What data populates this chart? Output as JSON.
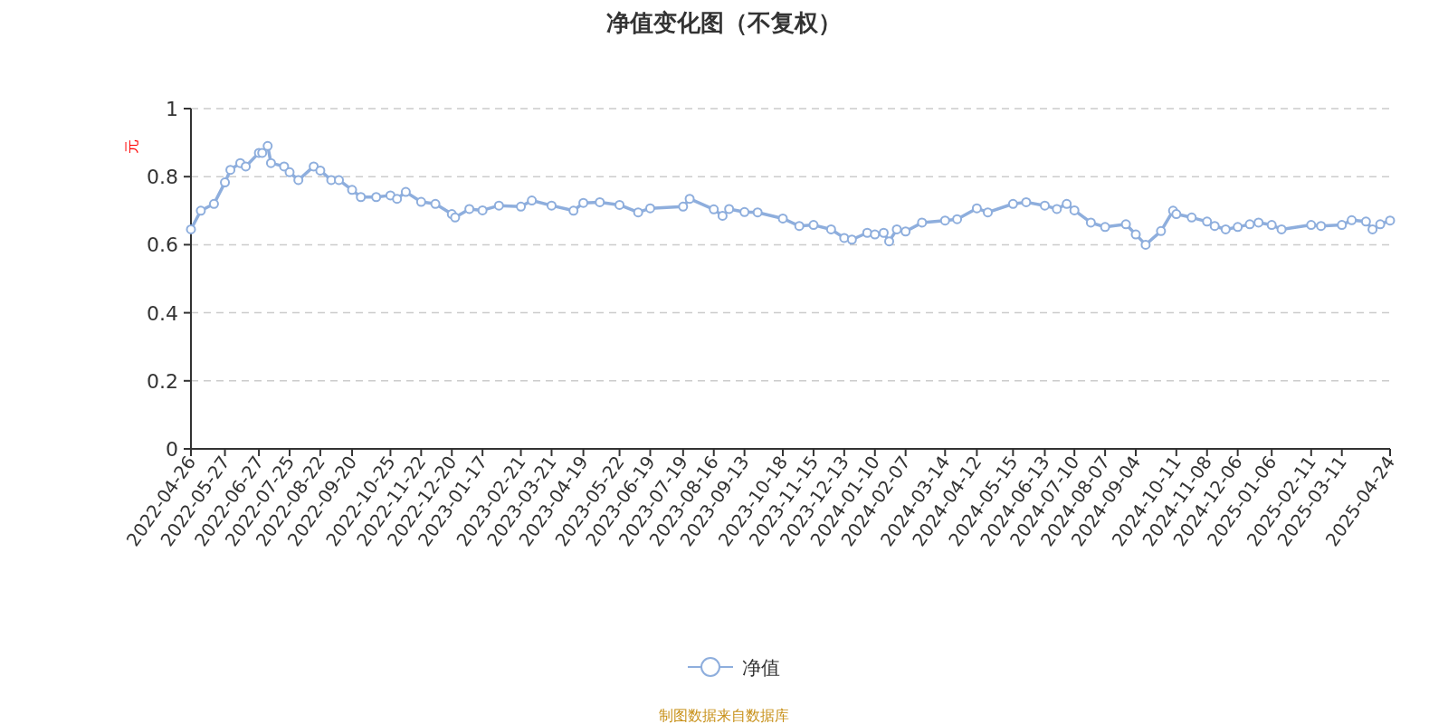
{
  "chart_data": {
    "type": "line",
    "title": "净值变化图（不复权）",
    "ylabel": "元",
    "annotations": [
      "制图数据来自数据库"
    ],
    "x": [
      "2022-04-26",
      "2022-05-05",
      "2022-05-17",
      "2022-05-27",
      "2022-06-01",
      "2022-06-10",
      "2022-06-15",
      "2022-06-27",
      "2022-06-30",
      "2022-07-05",
      "2022-07-08",
      "2022-07-20",
      "2022-07-25",
      "2022-08-02",
      "2022-08-16",
      "2022-08-22",
      "2022-09-01",
      "2022-09-08",
      "2022-09-20",
      "2022-09-28",
      "2022-10-12",
      "2022-10-25",
      "2022-10-31",
      "2022-11-08",
      "2022-11-22",
      "2022-12-05",
      "2022-12-20",
      "2022-12-23",
      "2023-01-05",
      "2023-01-17",
      "2023-02-01",
      "2023-02-21",
      "2023-03-03",
      "2023-03-21",
      "2023-04-10",
      "2023-04-19",
      "2023-05-04",
      "2023-05-22",
      "2023-06-08",
      "2023-06-19",
      "2023-07-19",
      "2023-07-25",
      "2023-08-16",
      "2023-08-24",
      "2023-08-30",
      "2023-09-13",
      "2023-09-25",
      "2023-10-18",
      "2023-11-02",
      "2023-11-15",
      "2023-12-01",
      "2023-12-13",
      "2023-12-20",
      "2024-01-03",
      "2024-01-10",
      "2024-01-18",
      "2024-01-23",
      "2024-01-30",
      "2024-02-07",
      "2024-02-22",
      "2024-03-14",
      "2024-03-25",
      "2024-04-12",
      "2024-04-22",
      "2024-05-15",
      "2024-05-27",
      "2024-06-13",
      "2024-06-24",
      "2024-07-03",
      "2024-07-10",
      "2024-07-25",
      "2024-08-07",
      "2024-08-26",
      "2024-09-04",
      "2024-09-13",
      "2024-09-27",
      "2024-10-08",
      "2024-10-11",
      "2024-10-25",
      "2024-11-08",
      "2024-11-15",
      "2024-11-25",
      "2024-12-06",
      "2024-12-17",
      "2024-12-25",
      "2025-01-06",
      "2025-01-15",
      "2025-02-11",
      "2025-02-20",
      "2025-03-11",
      "2025-03-20",
      "2025-04-02",
      "2025-04-08",
      "2025-04-15",
      "2025-04-24"
    ],
    "series": [
      {
        "name": "净值",
        "color": "#8eaedd",
        "values": [
          0.645,
          0.7,
          0.72,
          0.783,
          0.82,
          0.84,
          0.83,
          0.87,
          0.87,
          0.89,
          0.84,
          0.83,
          0.813,
          0.79,
          0.83,
          0.818,
          0.79,
          0.79,
          0.761,
          0.74,
          0.74,
          0.745,
          0.735,
          0.755,
          0.726,
          0.72,
          0.69,
          0.68,
          0.705,
          0.701,
          0.715,
          0.712,
          0.73,
          0.715,
          0.7,
          0.723,
          0.725,
          0.717,
          0.695,
          0.707,
          0.712,
          0.735,
          0.704,
          0.685,
          0.705,
          0.696,
          0.695,
          0.677,
          0.655,
          0.658,
          0.645,
          0.62,
          0.615,
          0.635,
          0.63,
          0.635,
          0.61,
          0.645,
          0.639,
          0.665,
          0.671,
          0.675,
          0.707,
          0.695,
          0.72,
          0.725,
          0.715,
          0.705,
          0.72,
          0.701,
          0.665,
          0.652,
          0.66,
          0.63,
          0.6,
          0.64,
          0.7,
          0.69,
          0.68,
          0.668,
          0.655,
          0.645,
          0.652,
          0.66,
          0.665,
          0.658,
          0.645,
          0.658,
          0.655,
          0.658,
          0.672,
          0.668,
          0.645,
          0.66,
          0.671
        ]
      }
    ],
    "xlim": [
      "2022-04-26",
      "2025-04-24"
    ],
    "xticks": [
      "2022-04-26",
      "2022-05-27",
      "2022-06-27",
      "2022-07-25",
      "2022-08-22",
      "2022-09-20",
      "2022-10-25",
      "2022-11-22",
      "2022-12-20",
      "2023-01-17",
      "2023-02-21",
      "2023-03-21",
      "2023-04-19",
      "2023-05-22",
      "2023-06-19",
      "2023-07-19",
      "2023-08-16",
      "2023-09-13",
      "2023-10-18",
      "2023-11-15",
      "2023-12-13",
      "2024-01-10",
      "2024-02-07",
      "2024-03-14",
      "2024-04-12",
      "2024-05-15",
      "2024-06-13",
      "2024-07-10",
      "2024-08-07",
      "2024-09-04",
      "2024-10-11",
      "2024-11-08",
      "2024-12-06",
      "2025-01-06",
      "2025-02-11",
      "2025-03-11",
      "2025-04-24"
    ],
    "ylim": [
      0,
      1
    ],
    "yticks": [
      0,
      0.2,
      0.4,
      0.6,
      0.8,
      1
    ],
    "grid": "y",
    "legend": "bottom",
    "marker": "circle"
  }
}
